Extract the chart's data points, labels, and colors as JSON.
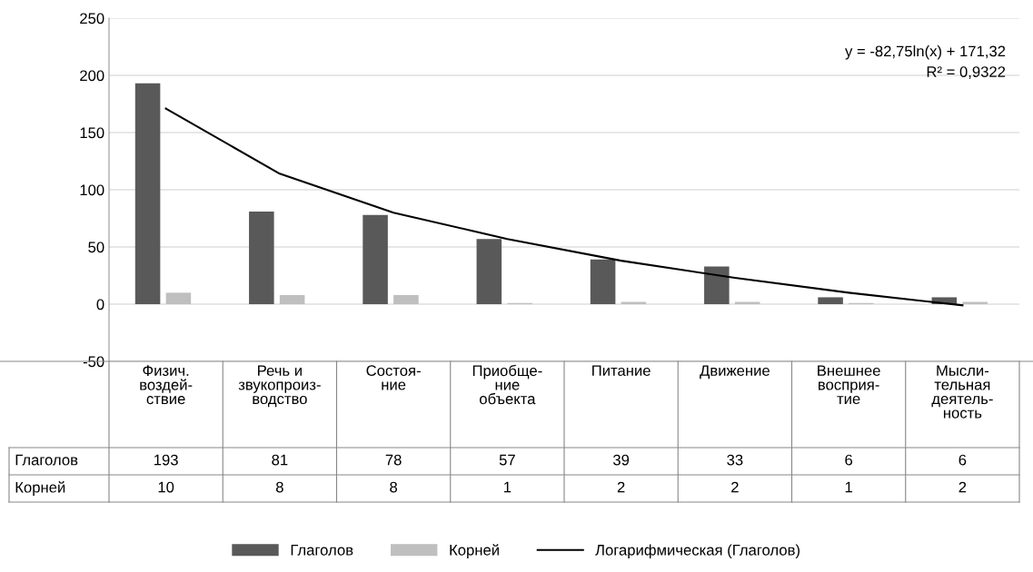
{
  "chart_data": {
    "type": "bar",
    "categories": [
      "Физич.\nвоздей-\nствие",
      "Речь и\nзвукопроиз-\nводство",
      "Состоя-\nние",
      "Приобще-\nние\nобъекта",
      "Питание",
      "Движение",
      "Внешнее\nвосприя-\nтие",
      "Мысли-\nтельная\nдеятель-\nность"
    ],
    "series": [
      {
        "name": "Глаголов",
        "color": "#595959",
        "values": [
          193,
          81,
          78,
          57,
          39,
          33,
          6,
          6
        ],
        "value_labels": [
          "193",
          "81",
          "78",
          "57",
          "39",
          "33",
          "6",
          "6"
        ]
      },
      {
        "name": "Корней",
        "color": "#bfbfbf",
        "values": [
          10,
          8,
          8,
          1,
          2,
          2,
          1,
          2
        ],
        "value_labels": [
          "10",
          "8",
          "8",
          "1",
          "2",
          "2",
          "1",
          "2"
        ]
      },
      {
        "name": "Логарифмическая (Глаголов)",
        "type": "line",
        "color": "#000000",
        "values": [
          171,
          114,
          80,
          57,
          38,
          23,
          10,
          -1
        ]
      }
    ],
    "ylim": [
      -50,
      250
    ],
    "yticks": [
      -50,
      0,
      50,
      100,
      150,
      200,
      250
    ],
    "grid": "y",
    "legend": "bottom",
    "annotations": [
      "y = -82,75ln(x) + 171,32",
      "R² = 0,9322"
    ]
  }
}
